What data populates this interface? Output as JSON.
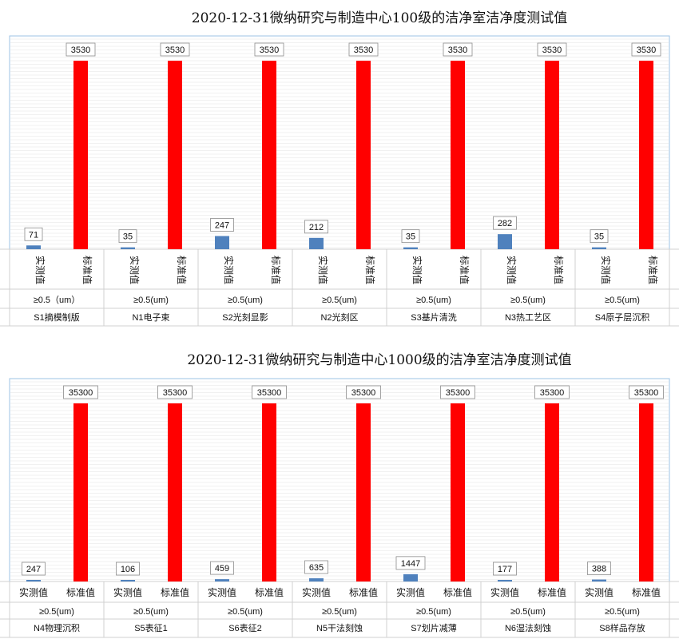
{
  "chart_data": [
    {
      "type": "bar",
      "title": "2020-12-31微纳研究与制造中心100级的洁净室洁净度测试值",
      "series_names": [
        "实测值",
        "标准值"
      ],
      "colors": {
        "measured": "#4f81bd",
        "standard": "#ff0000"
      },
      "ylim": [
        0,
        3530
      ],
      "groups": [
        {
          "size": "≥0.5（um）",
          "location": "S1摘模制版",
          "measured": 71,
          "standard": 3530
        },
        {
          "size": "≥0.5(um)",
          "location": "N1电子束",
          "measured": 35,
          "standard": 3530
        },
        {
          "size": "≥0.5(um)",
          "location": "S2光刻显影",
          "measured": 247,
          "standard": 3530
        },
        {
          "size": "≥0.5(um)",
          "location": "N2光刻区",
          "measured": 212,
          "standard": 3530
        },
        {
          "size": "≥0.5(um)",
          "location": "S3基片清洗",
          "measured": 35,
          "standard": 3530
        },
        {
          "size": "≥0.5(um)",
          "location": "N3热工艺区",
          "measured": 282,
          "standard": 3530
        },
        {
          "size": "≥0.5(um)",
          "location": "S4原子层沉积",
          "measured": 35,
          "standard": 3530
        }
      ]
    },
    {
      "type": "bar",
      "title": "2020-12-31微纳研究与制造中心1000级的洁净室洁净度测试值",
      "series_names": [
        "实测值",
        "标准值"
      ],
      "colors": {
        "measured": "#4f81bd",
        "standard": "#ff0000"
      },
      "ylim": [
        0,
        35300
      ],
      "groups": [
        {
          "size": "≥0.5(um)",
          "location": "N4物理沉积",
          "measured": 247,
          "standard": 35300
        },
        {
          "size": "≥0.5(um)",
          "location": "S5表征1",
          "measured": 106,
          "standard": 35300
        },
        {
          "size": "≥0.5(um)",
          "location": "S6表征2",
          "measured": 459,
          "standard": 35300
        },
        {
          "size": "≥0.5(um)",
          "location": "N5干法刻蚀",
          "measured": 635,
          "standard": 35300
        },
        {
          "size": "≥0.5(um)",
          "location": "S7划片减薄",
          "measured": 1447,
          "standard": 35300
        },
        {
          "size": "≥0.5(um)",
          "location": "N6湿法刻蚀",
          "measured": 177,
          "standard": 35300
        },
        {
          "size": "≥0.5(um)",
          "location": "S8样品存放",
          "measured": 388,
          "standard": 35300
        }
      ]
    }
  ]
}
